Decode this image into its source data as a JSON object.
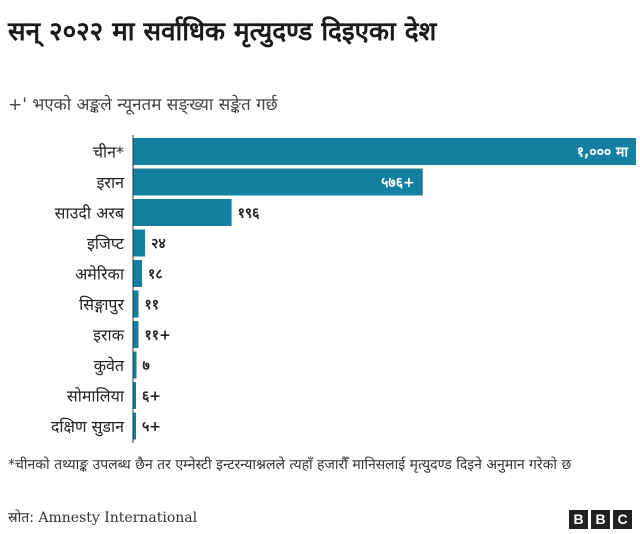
{
  "header": {
    "title": "सन् २०२२ मा सर्वाधिक मृत्युदण्ड दिइएका देश",
    "subtitle": "+' भएको अङ्कले न्यूनतम सङ्ख्या सङ्केत गर्छ"
  },
  "chart_data": {
    "type": "bar",
    "orientation": "horizontal",
    "categories": [
      "चीन*",
      "इरान",
      "साउदी अरब",
      "इजिप्ट",
      "अमेरिका",
      "सिङ्गापुर",
      "इराक",
      "कुवेत",
      "सोमालिया",
      "दक्षिण सुडान"
    ],
    "values": [
      1000,
      576,
      196,
      24,
      18,
      11,
      11,
      7,
      6,
      5
    ],
    "value_labels": [
      "१,००० मा",
      "५७६+",
      "१९६",
      "२४",
      "१८",
      "११",
      "११+",
      "७",
      "६+",
      "५+"
    ],
    "xlim": [
      0,
      1000
    ],
    "grid": false,
    "bar_color": "#1380a1"
  },
  "footnote": "*चीनको तथ्याङ्क उपलब्ध छैन तर एम्नेस्टी इन्टरन्याश्नलले त्यहाँ हजारौँ मानिसलाई मृत्युदण्ड दिइने अनुमान गरेको छ",
  "source": {
    "label": "स्रोत:",
    "value": "Amnesty International"
  },
  "logo": {
    "letters": [
      "B",
      "B",
      "C"
    ]
  }
}
